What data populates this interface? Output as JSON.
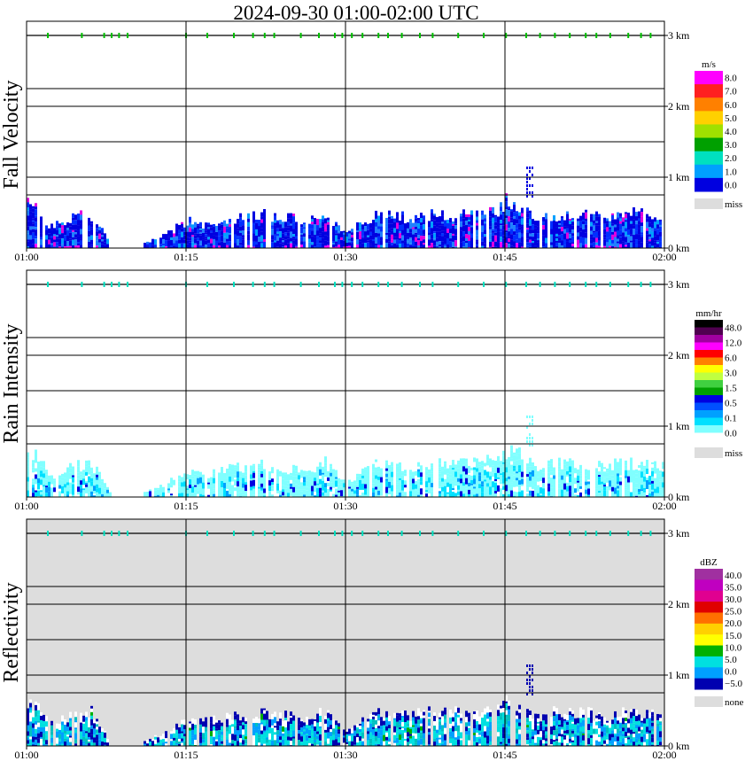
{
  "chart_data": {
    "type": "heatmap",
    "title": "2024-09-30   01:00-02:00 UTC",
    "x_ticks": [
      "01:00",
      "01:15",
      "01:30",
      "01:45",
      "02:00"
    ],
    "height_ticks": [
      "0 km",
      "1 km",
      "2 km",
      "3 km"
    ],
    "y_range_km": [
      0,
      3.2
    ],
    "grid": true,
    "panels": [
      {
        "ylabel": "Fall Velocity",
        "background": "#ffffff",
        "unit": "m/s",
        "legend_labels": [
          "8.0",
          "7.0",
          "6.0",
          "5.0",
          "4.0",
          "3.0",
          "2.0",
          "1.0",
          "0.0"
        ],
        "legend_colors": [
          "#ff00ff",
          "#ff2020",
          "#ff8000",
          "#ffd000",
          "#a0e000",
          "#00a000",
          "#00e0c0",
          "#00a0ff",
          "#0000e0"
        ],
        "miss_label": "miss",
        "miss_color": "#dddddd"
      },
      {
        "ylabel": "Rain Intensity",
        "background": "#ffffff",
        "unit": "mm/hr",
        "legend_labels": [
          "48.0",
          "12.0",
          "6.0",
          "3.0",
          "1.5",
          "0.5",
          "0.1",
          "0.0"
        ],
        "legend_colors": [
          "#000000",
          "#500050",
          "#a000a0",
          "#ff00ff",
          "#ff0000",
          "#ff8000",
          "#ffff00",
          "#c0ff40",
          "#40d040",
          "#00a000",
          "#0000e0",
          "#0050ff",
          "#00a0ff",
          "#00e0ff",
          "#80ffff",
          "#ffffff"
        ],
        "miss_label": "miss",
        "miss_color": "#dddddd"
      },
      {
        "ylabel": "Reflectivity",
        "background": "#dddddd",
        "unit": "dBZ",
        "legend_labels": [
          "40.0",
          "35.0",
          "30.0",
          "25.0",
          "20.0",
          "15.0",
          "10.0",
          "5.0",
          "0.0",
          "−5.0"
        ],
        "legend_colors": [
          "#a030a0",
          "#c000c0",
          "#e00090",
          "#e00000",
          "#ff7000",
          "#ffd000",
          "#ffff00",
          "#00b000",
          "#00e0e0",
          "#00a0ff",
          "#0000b0"
        ],
        "miss_label": "none",
        "miss_color": "#dddddd"
      }
    ],
    "cloud_top_markers_min": [
      2.0,
      5.2,
      7.3,
      8.0,
      8.7,
      9.5,
      15.0,
      17.0,
      19.5,
      21.3,
      22.4,
      23.3,
      25.8,
      27.5,
      29.0,
      29.7,
      30.6,
      31.6,
      33.1,
      34.0,
      35.3,
      37.0,
      38.2,
      40.6,
      43.0,
      45.1,
      47.0,
      48.3,
      49.7,
      51.1,
      52.6,
      53.6,
      54.9,
      56.6,
      57.8,
      58.7
    ],
    "fall_velocity_profile": {
      "time_min": [
        0,
        1,
        2,
        4,
        6,
        8,
        10,
        13,
        15,
        17,
        19,
        21,
        22,
        24,
        26,
        28,
        30,
        32,
        34,
        36,
        38,
        40,
        42,
        44,
        45,
        46,
        47,
        48,
        50,
        52,
        54,
        56,
        58,
        60
      ],
      "top_km": [
        0.7,
        0.6,
        0.3,
        0.45,
        0.5,
        0.0,
        0.0,
        0.2,
        0.4,
        0.35,
        0.45,
        0.45,
        0.5,
        0.45,
        0.4,
        0.5,
        0.2,
        0.45,
        0.5,
        0.45,
        0.5,
        0.5,
        0.5,
        0.55,
        0.7,
        0.65,
        0.55,
        0.45,
        0.5,
        0.5,
        0.45,
        0.5,
        0.5,
        0.45
      ],
      "elevated_echo": {
        "time_min": [
          47.0,
          47.5
        ],
        "base_km": 0.75,
        "top_km": 1.2
      }
    }
  }
}
